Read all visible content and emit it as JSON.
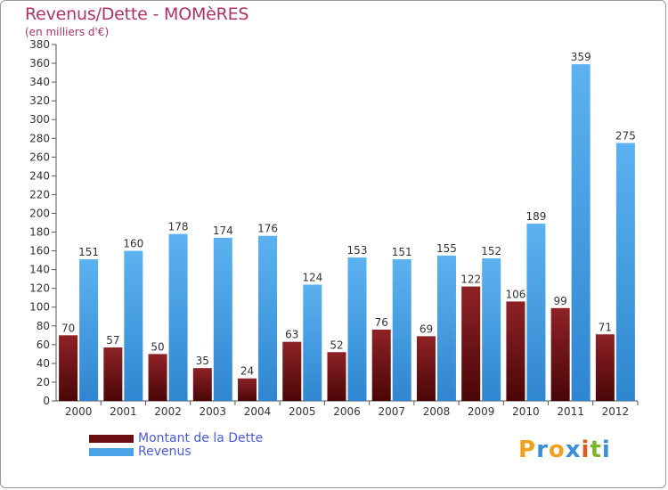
{
  "header": {
    "title": "Revenus/Dette - MOMèRES",
    "unit": "(en milliers d'€)"
  },
  "chart_data": {
    "type": "bar",
    "title": "Revenus/Dette - MOMèRES",
    "subtitle": "(en milliers d'€)",
    "xlabel": "",
    "ylabel": "",
    "ylim": [
      0,
      380
    ],
    "ytick_step": 20,
    "grid": false,
    "legend_position": "bottom-left",
    "categories": [
      "2000",
      "2001",
      "2002",
      "2003",
      "2004",
      "2005",
      "2006",
      "2007",
      "2008",
      "2009",
      "2010",
      "2011",
      "2012"
    ],
    "series": [
      {
        "name": "Montant de la Dette",
        "color": "#7a1418",
        "values": [
          70,
          57,
          50,
          35,
          24,
          63,
          52,
          76,
          69,
          122,
          106,
          99,
          71
        ]
      },
      {
        "name": "Revenus",
        "color": "#4aa3e6",
        "values": [
          151,
          160,
          178,
          174,
          176,
          124,
          153,
          151,
          155,
          152,
          189,
          359,
          275
        ]
      }
    ]
  },
  "legend": {
    "items": [
      {
        "label": "Montant de la Dette",
        "color": "#6b0f12"
      },
      {
        "label": "Revenus",
        "color": "#4aa3e6"
      }
    ]
  },
  "logo": {
    "letters": [
      "P",
      "r",
      "o",
      "x",
      "i",
      "t",
      "i"
    ],
    "colors": [
      "#f0a020",
      "#3a8fd8",
      "#f0a020",
      "#3a8fd8",
      "#e05a20",
      "#7ab82a",
      "#3a8fd8"
    ]
  }
}
